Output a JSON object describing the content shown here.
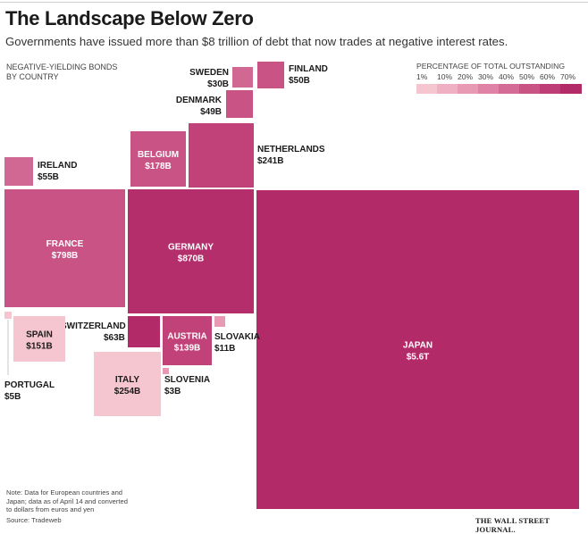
{
  "title": "The Landscape Below Zero",
  "subtitle": "Governments have issued more than $8 trillion of debt that now trades at negative interest rates.",
  "panel_label_line1": "NEGATIVE-YIELDING BONDS",
  "panel_label_line2": "BY COUNTRY",
  "legend": {
    "title": "PERCENTAGE OF TOTAL OUTSTANDING",
    "labels": [
      "1%",
      "10%",
      "20%",
      "30%",
      "40%",
      "50%",
      "60%",
      "70%"
    ],
    "colors": [
      "#f5c5d0",
      "#eeb0c2",
      "#e89ab4",
      "#df82a5",
      "#d46b96",
      "#c95385",
      "#be3d76",
      "#b32a68"
    ]
  },
  "note_lines": [
    "Note: Data for European countries and",
    "Japan; data as of April 14 and converted",
    "to dollars from euros and yen"
  ],
  "source": "Source: Tradeweb",
  "brand": "THE WALL STREET JOURNAL.",
  "chart_data": {
    "type": "treemap",
    "value_unit": "US$ billions",
    "items": [
      {
        "country": "JAPAN",
        "label": "$5.6T",
        "value": 5600,
        "color": "#b32a68"
      },
      {
        "country": "GERMANY",
        "label": "$870B",
        "value": 870,
        "color": "#b52e6c"
      },
      {
        "country": "FRANCE",
        "label": "$798B",
        "value": 798,
        "color": "#c95385"
      },
      {
        "country": "SWITZERLAND",
        "label": "$63B",
        "value": 63,
        "color": "#b32a68"
      },
      {
        "country": "NETHERLANDS",
        "label": "$241B",
        "value": 241,
        "color": "#c04278"
      },
      {
        "country": "BELGIUM",
        "label": "$178B",
        "value": 178,
        "color": "#c95385"
      },
      {
        "country": "IRELAND",
        "label": "$55B",
        "value": 55,
        "color": "#d06893"
      },
      {
        "country": "SWEDEN",
        "label": "$30B",
        "value": 30,
        "color": "#d06893"
      },
      {
        "country": "FINLAND",
        "label": "$50B",
        "value": 50,
        "color": "#c95385"
      },
      {
        "country": "DENMARK",
        "label": "$49B",
        "value": 49,
        "color": "#c95385"
      },
      {
        "country": "SPAIN",
        "label": "$151B",
        "value": 151,
        "color": "#f5c5d0"
      },
      {
        "country": "PORTUGAL",
        "label": "$5B",
        "value": 5,
        "color": "#f5c5d0"
      },
      {
        "country": "ITALY",
        "label": "$254B",
        "value": 254,
        "color": "#f5c5d0"
      },
      {
        "country": "AUSTRIA",
        "label": "$139B",
        "value": 139,
        "color": "#c04278"
      },
      {
        "country": "SLOVENIA",
        "label": "$3B",
        "value": 3,
        "color": "#e89ab4"
      },
      {
        "country": "SLOVAKIA",
        "label": "$11B",
        "value": 11,
        "color": "#e89ab4"
      }
    ]
  }
}
